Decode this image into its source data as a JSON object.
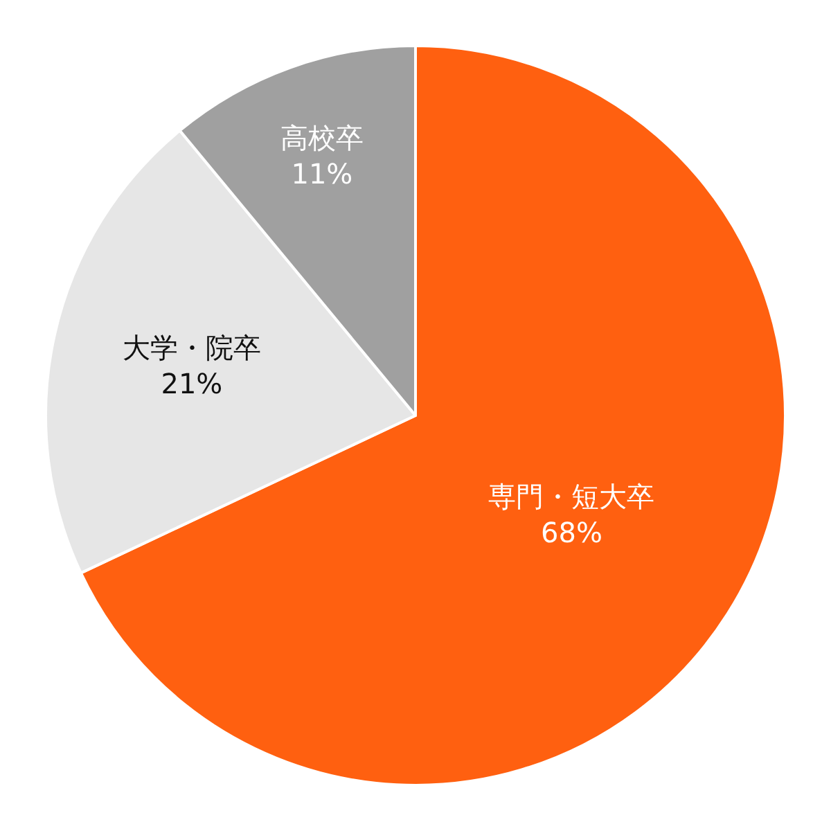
{
  "chart_data": {
    "type": "pie",
    "categories": [
      "専門・短大卒",
      "大学・院卒",
      "高校卒"
    ],
    "values": [
      68,
      21,
      11
    ],
    "value_labels": [
      "68%",
      "21%",
      "11%"
    ],
    "colors": [
      "#ff6010",
      "#e6e6e6",
      "#a0a0a0"
    ]
  }
}
